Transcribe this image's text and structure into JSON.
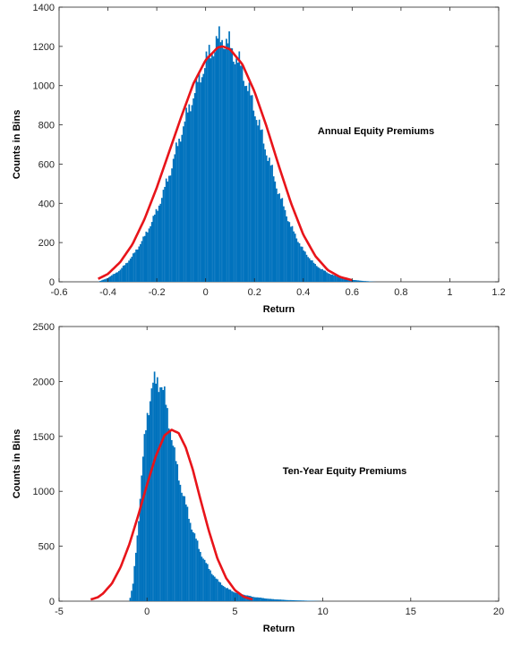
{
  "chart_data": [
    {
      "type": "histogram",
      "annotation": "Annual Equity Premiums",
      "xlabel": "Return",
      "ylabel": "Counts in Bins",
      "xlim": [
        -0.6,
        1.2
      ],
      "ylim": [
        0,
        1400
      ],
      "xticks": [
        "-0.6",
        "-0.4",
        "-0.2",
        "0",
        "0.2",
        "0.4",
        "0.6",
        "0.8",
        "1",
        "1.2"
      ],
      "yticks": [
        "0",
        "200",
        "400",
        "600",
        "800",
        "1000",
        "1200",
        "1400"
      ],
      "grid": false,
      "bar_color": "#0072BD",
      "fit_color": "#E8141A",
      "histogram": {
        "x": [
          -0.44,
          -0.4,
          -0.35,
          -0.3,
          -0.25,
          -0.2,
          -0.15,
          -0.1,
          -0.05,
          0.0,
          0.05,
          0.07,
          0.1,
          0.15,
          0.2,
          0.25,
          0.3,
          0.35,
          0.4,
          0.45,
          0.5,
          0.55,
          0.6,
          0.65,
          0.7
        ],
        "counts": [
          0,
          20,
          60,
          130,
          230,
          360,
          540,
          760,
          950,
          1120,
          1230,
          1240,
          1200,
          1080,
          880,
          660,
          450,
          280,
          160,
          85,
          45,
          22,
          10,
          4,
          0
        ]
      },
      "fit_curve": {
        "x": [
          -0.44,
          -0.4,
          -0.35,
          -0.3,
          -0.25,
          -0.2,
          -0.15,
          -0.1,
          -0.05,
          0.0,
          0.05,
          0.07,
          0.1,
          0.15,
          0.2,
          0.25,
          0.3,
          0.35,
          0.4,
          0.45,
          0.5,
          0.55,
          0.6
        ],
        "y": [
          15,
          40,
          100,
          190,
          320,
          480,
          660,
          840,
          1010,
          1130,
          1195,
          1200,
          1185,
          1110,
          970,
          790,
          590,
          400,
          240,
          130,
          60,
          25,
          8
        ]
      }
    },
    {
      "type": "histogram",
      "annotation": "Ten-Year Equity Premiums",
      "xlabel": "Return",
      "ylabel": "Counts in Bins",
      "xlim": [
        -5,
        20
      ],
      "ylim": [
        0,
        2500
      ],
      "xticks": [
        "-5",
        "0",
        "5",
        "10",
        "15",
        "20"
      ],
      "yticks": [
        "0",
        "500",
        "1000",
        "1500",
        "2000",
        "2500"
      ],
      "grid": false,
      "bar_color": "#0072BD",
      "fit_color": "#E8141A",
      "histogram": {
        "x": [
          -1.0,
          -0.8,
          -0.5,
          -0.2,
          0.0,
          0.3,
          0.6,
          0.8,
          1.0,
          1.3,
          1.6,
          2.0,
          2.5,
          3.0,
          3.5,
          4.0,
          4.5,
          5.0,
          6.0,
          7.0,
          8.0,
          9.0,
          10.0
        ],
        "counts": [
          0,
          150,
          700,
          1350,
          1700,
          1950,
          2020,
          1980,
          1850,
          1600,
          1300,
          1000,
          700,
          460,
          300,
          190,
          120,
          80,
          40,
          20,
          10,
          5,
          0
        ]
      },
      "fit_curve": {
        "x": [
          -3.2,
          -2.8,
          -2.5,
          -2.0,
          -1.5,
          -1.0,
          -0.5,
          0.0,
          0.5,
          1.0,
          1.4,
          1.8,
          2.2,
          2.6,
          3.0,
          3.5,
          4.0,
          4.5,
          5.0,
          5.5,
          6.0
        ],
        "y": [
          15,
          35,
          70,
          160,
          310,
          520,
          780,
          1060,
          1320,
          1510,
          1560,
          1530,
          1400,
          1200,
          950,
          650,
          390,
          210,
          100,
          40,
          15
        ]
      }
    }
  ]
}
